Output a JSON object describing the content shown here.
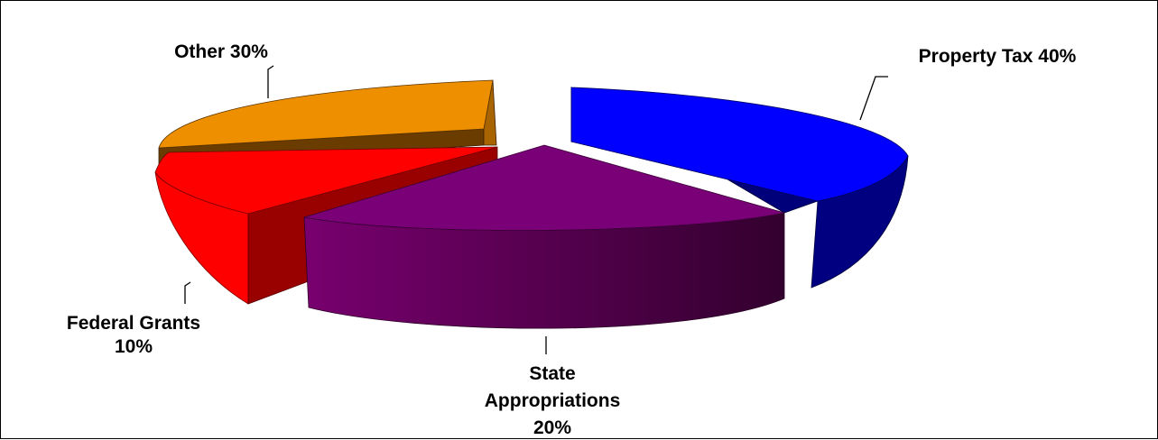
{
  "chart_data": {
    "type": "pie",
    "title": "",
    "categories": [
      "Property Tax",
      "State Appropriations",
      "Federal Grants",
      "Other"
    ],
    "values": [
      40,
      20,
      10,
      30
    ],
    "unit": "%",
    "colors": {
      "Property Tax": "#0000ff",
      "State Appropriations": "#7a0078",
      "Federal Grants": "#ff0000",
      "Other": "#ee8f00"
    },
    "exploded": true,
    "style": "3d",
    "legend": "none",
    "labels": {
      "property_tax": "Property Tax 40%",
      "state_line1": "State",
      "state_line2": "Appropriations",
      "state_line3": "20%",
      "federal_line1": "Federal Grants",
      "federal_line2": "10%",
      "other": "Other 30%"
    }
  }
}
